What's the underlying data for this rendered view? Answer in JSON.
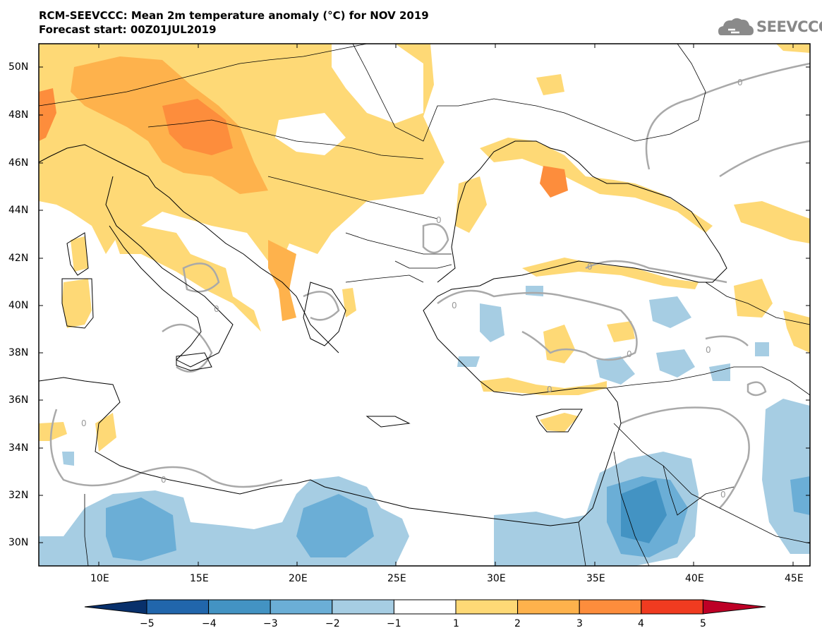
{
  "title": {
    "line1": "RCM-SEEVCCC: Mean 2m temperature anomaly (°C) for NOV 2019",
    "line2": "Forecast start: 00Z01JUL2019"
  },
  "logo": {
    "text": "SEEVCCC",
    "icon": "cloud-icon"
  },
  "map": {
    "lat_labels": [
      "50N",
      "48N",
      "46N",
      "44N",
      "42N",
      "40N",
      "38N",
      "36N",
      "34N",
      "32N",
      "30N"
    ],
    "lon_labels": [
      "10E",
      "15E",
      "20E",
      "25E",
      "30E",
      "35E",
      "40E",
      "45E"
    ],
    "contour_label": "0"
  },
  "colorbar": {
    "labels": [
      "−5",
      "−4",
      "−3",
      "−2",
      "−1",
      "1",
      "2",
      "3",
      "4",
      "5"
    ],
    "colors": [
      "#08306b",
      "#2166ac",
      "#4393c3",
      "#6baed6",
      "#a6cde3",
      "#ffffff",
      "#fed976",
      "#feb24c",
      "#fd8d3c",
      "#f03b20",
      "#bd0026"
    ]
  }
}
